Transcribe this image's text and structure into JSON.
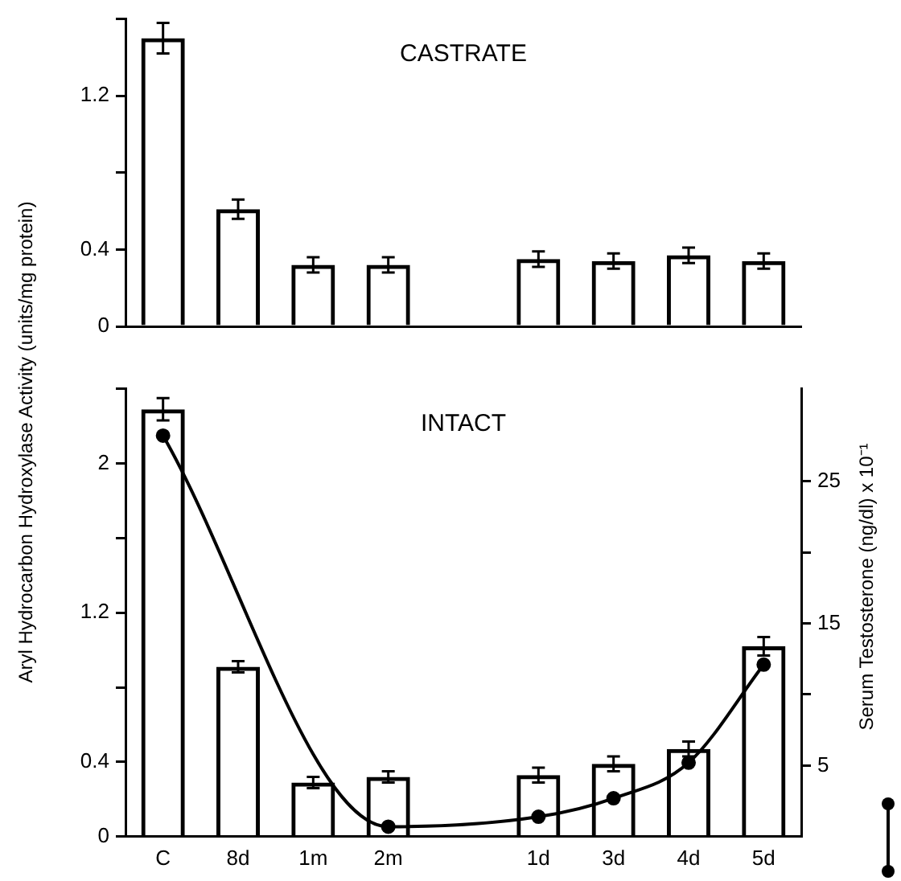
{
  "chart_data": [
    {
      "type": "bar",
      "title": "CASTRATE",
      "categories": [
        null,
        null,
        null,
        null,
        null,
        null,
        null,
        null,
        null
      ],
      "series": [
        {
          "color": "#000000",
          "values": [
            1.5,
            0.61,
            0.32,
            0.32,
            null,
            0.35,
            0.34,
            0.37,
            0.34
          ],
          "errors": [
            0.08,
            0.05,
            0.04,
            0.04,
            null,
            0.04,
            0.04,
            0.04,
            0.04
          ]
        }
      ],
      "ylim": [
        0,
        1.6
      ],
      "yticks": [
        0,
        0.4,
        {
          "value": 0.8,
          "label": null
        },
        1.2,
        {
          "value": 1.6,
          "label": null
        }
      ],
      "tick_labels": "y",
      "grid": false,
      "legend": false
    },
    {
      "type": "bar",
      "title": "INTACT",
      "ylabel": "Aryl Hydrocarbon Hydroxylase Activity  (units/mg protein)",
      "y2label": "Serum Testosterone (ng/dl) x 10⁻¹",
      "categories": [
        "C",
        "8d",
        "1m",
        "2m",
        null,
        "1d",
        "3d",
        "4d",
        "5d"
      ],
      "series": [
        {
          "color": "#000000",
          "values": [
            2.29,
            0.91,
            0.29,
            0.32,
            null,
            0.33,
            0.39,
            0.47,
            1.02
          ],
          "errors": [
            0.06,
            0.03,
            0.03,
            0.03,
            null,
            0.04,
            0.04,
            0.04,
            0.05
          ]
        },
        {
          "type": "line",
          "axis": "y2",
          "color": "#000000",
          "values": [
            28.2,
            null,
            null,
            0.7,
            null,
            1.4,
            2.7,
            5.2,
            12.1
          ]
        }
      ],
      "ylim": [
        0,
        2.4
      ],
      "yticks": [
        0,
        0.4,
        {
          "value": 0.8,
          "label": null
        },
        1.2,
        {
          "value": 1.6,
          "label": null
        },
        2.0,
        {
          "value": 2.4,
          "label": null
        }
      ],
      "y2lim": [
        0,
        31.5
      ],
      "y2ticks": [
        5,
        {
          "value": 10,
          "label": null
        },
        15,
        {
          "value": 20,
          "label": null
        },
        25
      ],
      "grid": false,
      "legend": false,
      "marker": "circle",
      "line_style": "solid"
    }
  ]
}
